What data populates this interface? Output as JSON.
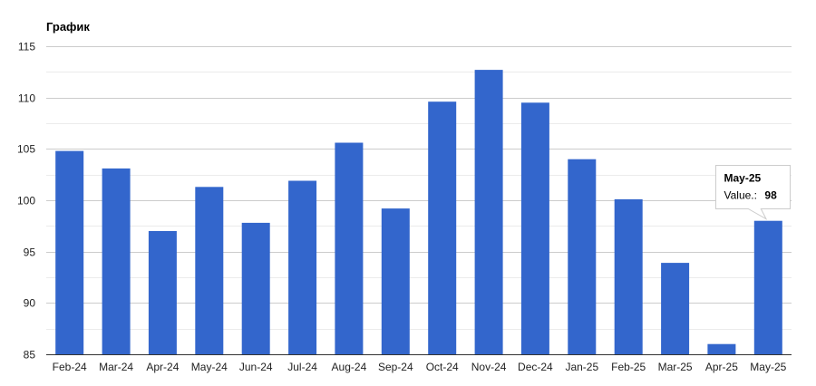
{
  "chart_data": {
    "type": "bar",
    "title": "График",
    "xlabel": "",
    "ylabel": "",
    "categories": [
      "Feb-24",
      "Mar-24",
      "Apr-24",
      "May-24",
      "Jun-24",
      "Jul-24",
      "Aug-24",
      "Sep-24",
      "Oct-24",
      "Nov-24",
      "Dec-24",
      "Jan-25",
      "Feb-25",
      "Mar-25",
      "Apr-25",
      "May-25"
    ],
    "values": [
      104.8,
      103.1,
      97,
      101.3,
      97.8,
      101.9,
      105.6,
      99.2,
      109.6,
      112.7,
      109.5,
      104,
      100.1,
      93.9,
      86,
      98
    ],
    "ylim": [
      85,
      115
    ],
    "yticks": [
      85,
      90,
      95,
      100,
      105,
      110,
      115
    ],
    "grid": true,
    "bar_color": "#3366cc",
    "tooltip": {
      "category": "May-25",
      "label": "Value.:",
      "value": "98"
    }
  }
}
